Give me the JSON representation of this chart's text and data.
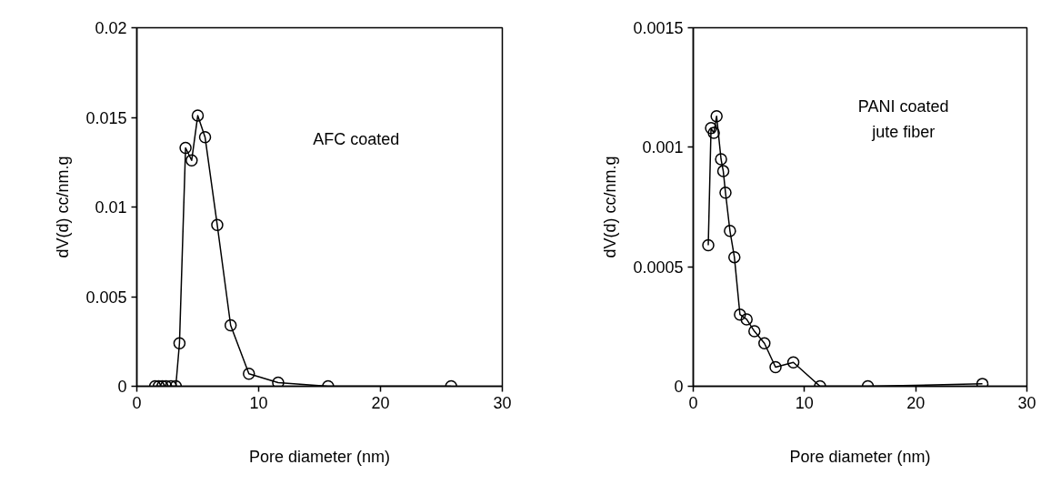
{
  "chart_data": [
    {
      "type": "line",
      "xlabel": "Pore diameter (nm)",
      "ylabel": "dV(d) cc/nm.g",
      "annotations": [
        "AFC coated"
      ],
      "marker": "circle",
      "line_style": "solid",
      "xlim": [
        0,
        30
      ],
      "xticks": [
        0,
        10,
        20,
        30
      ],
      "ylim": [
        0,
        0.02
      ],
      "yticks": [
        0,
        0.005,
        0.01,
        0.015,
        0.02
      ],
      "series": [
        {
          "color": "#000000",
          "x": [
            1.5,
            1.8,
            2.1,
            2.4,
            2.8,
            3.2,
            3.5,
            4.0,
            4.5,
            5.0,
            5.6,
            6.6,
            7.7,
            9.2,
            11.6,
            15.7,
            25.8
          ],
          "values": [
            0,
            0,
            0,
            0,
            0,
            0,
            0.0024,
            0.0133,
            0.0126,
            0.0151,
            0.0139,
            0.009,
            0.0034,
            0.0007,
            0.0002,
            0,
            0
          ]
        }
      ]
    },
    {
      "type": "line",
      "xlabel": "Pore diameter (nm)",
      "ylabel": "dV(d) cc/nm.g",
      "annotations": [
        "PANI coated\njute fiber"
      ],
      "marker": "circle",
      "line_style": "solid",
      "xlim": [
        0,
        30
      ],
      "xticks": [
        0,
        10,
        20,
        30
      ],
      "ylim": [
        0,
        0.0015
      ],
      "yticks": [
        0,
        0.0005,
        0.001,
        0.0015
      ],
      "series": [
        {
          "color": "#000000",
          "x": [
            1.35,
            1.6,
            1.85,
            2.1,
            2.5,
            2.7,
            2.9,
            3.3,
            3.7,
            4.2,
            4.8,
            5.5,
            6.4,
            7.4,
            9.0,
            11.4,
            15.7,
            26.0
          ],
          "values": [
            0.00059,
            0.00108,
            0.00106,
            0.00113,
            0.00095,
            0.0009,
            0.00081,
            0.00065,
            0.00054,
            0.0003,
            0.00028,
            0.00023,
            0.00018,
            8e-05,
            0.0001,
            0,
            0,
            1e-05
          ]
        }
      ]
    }
  ]
}
